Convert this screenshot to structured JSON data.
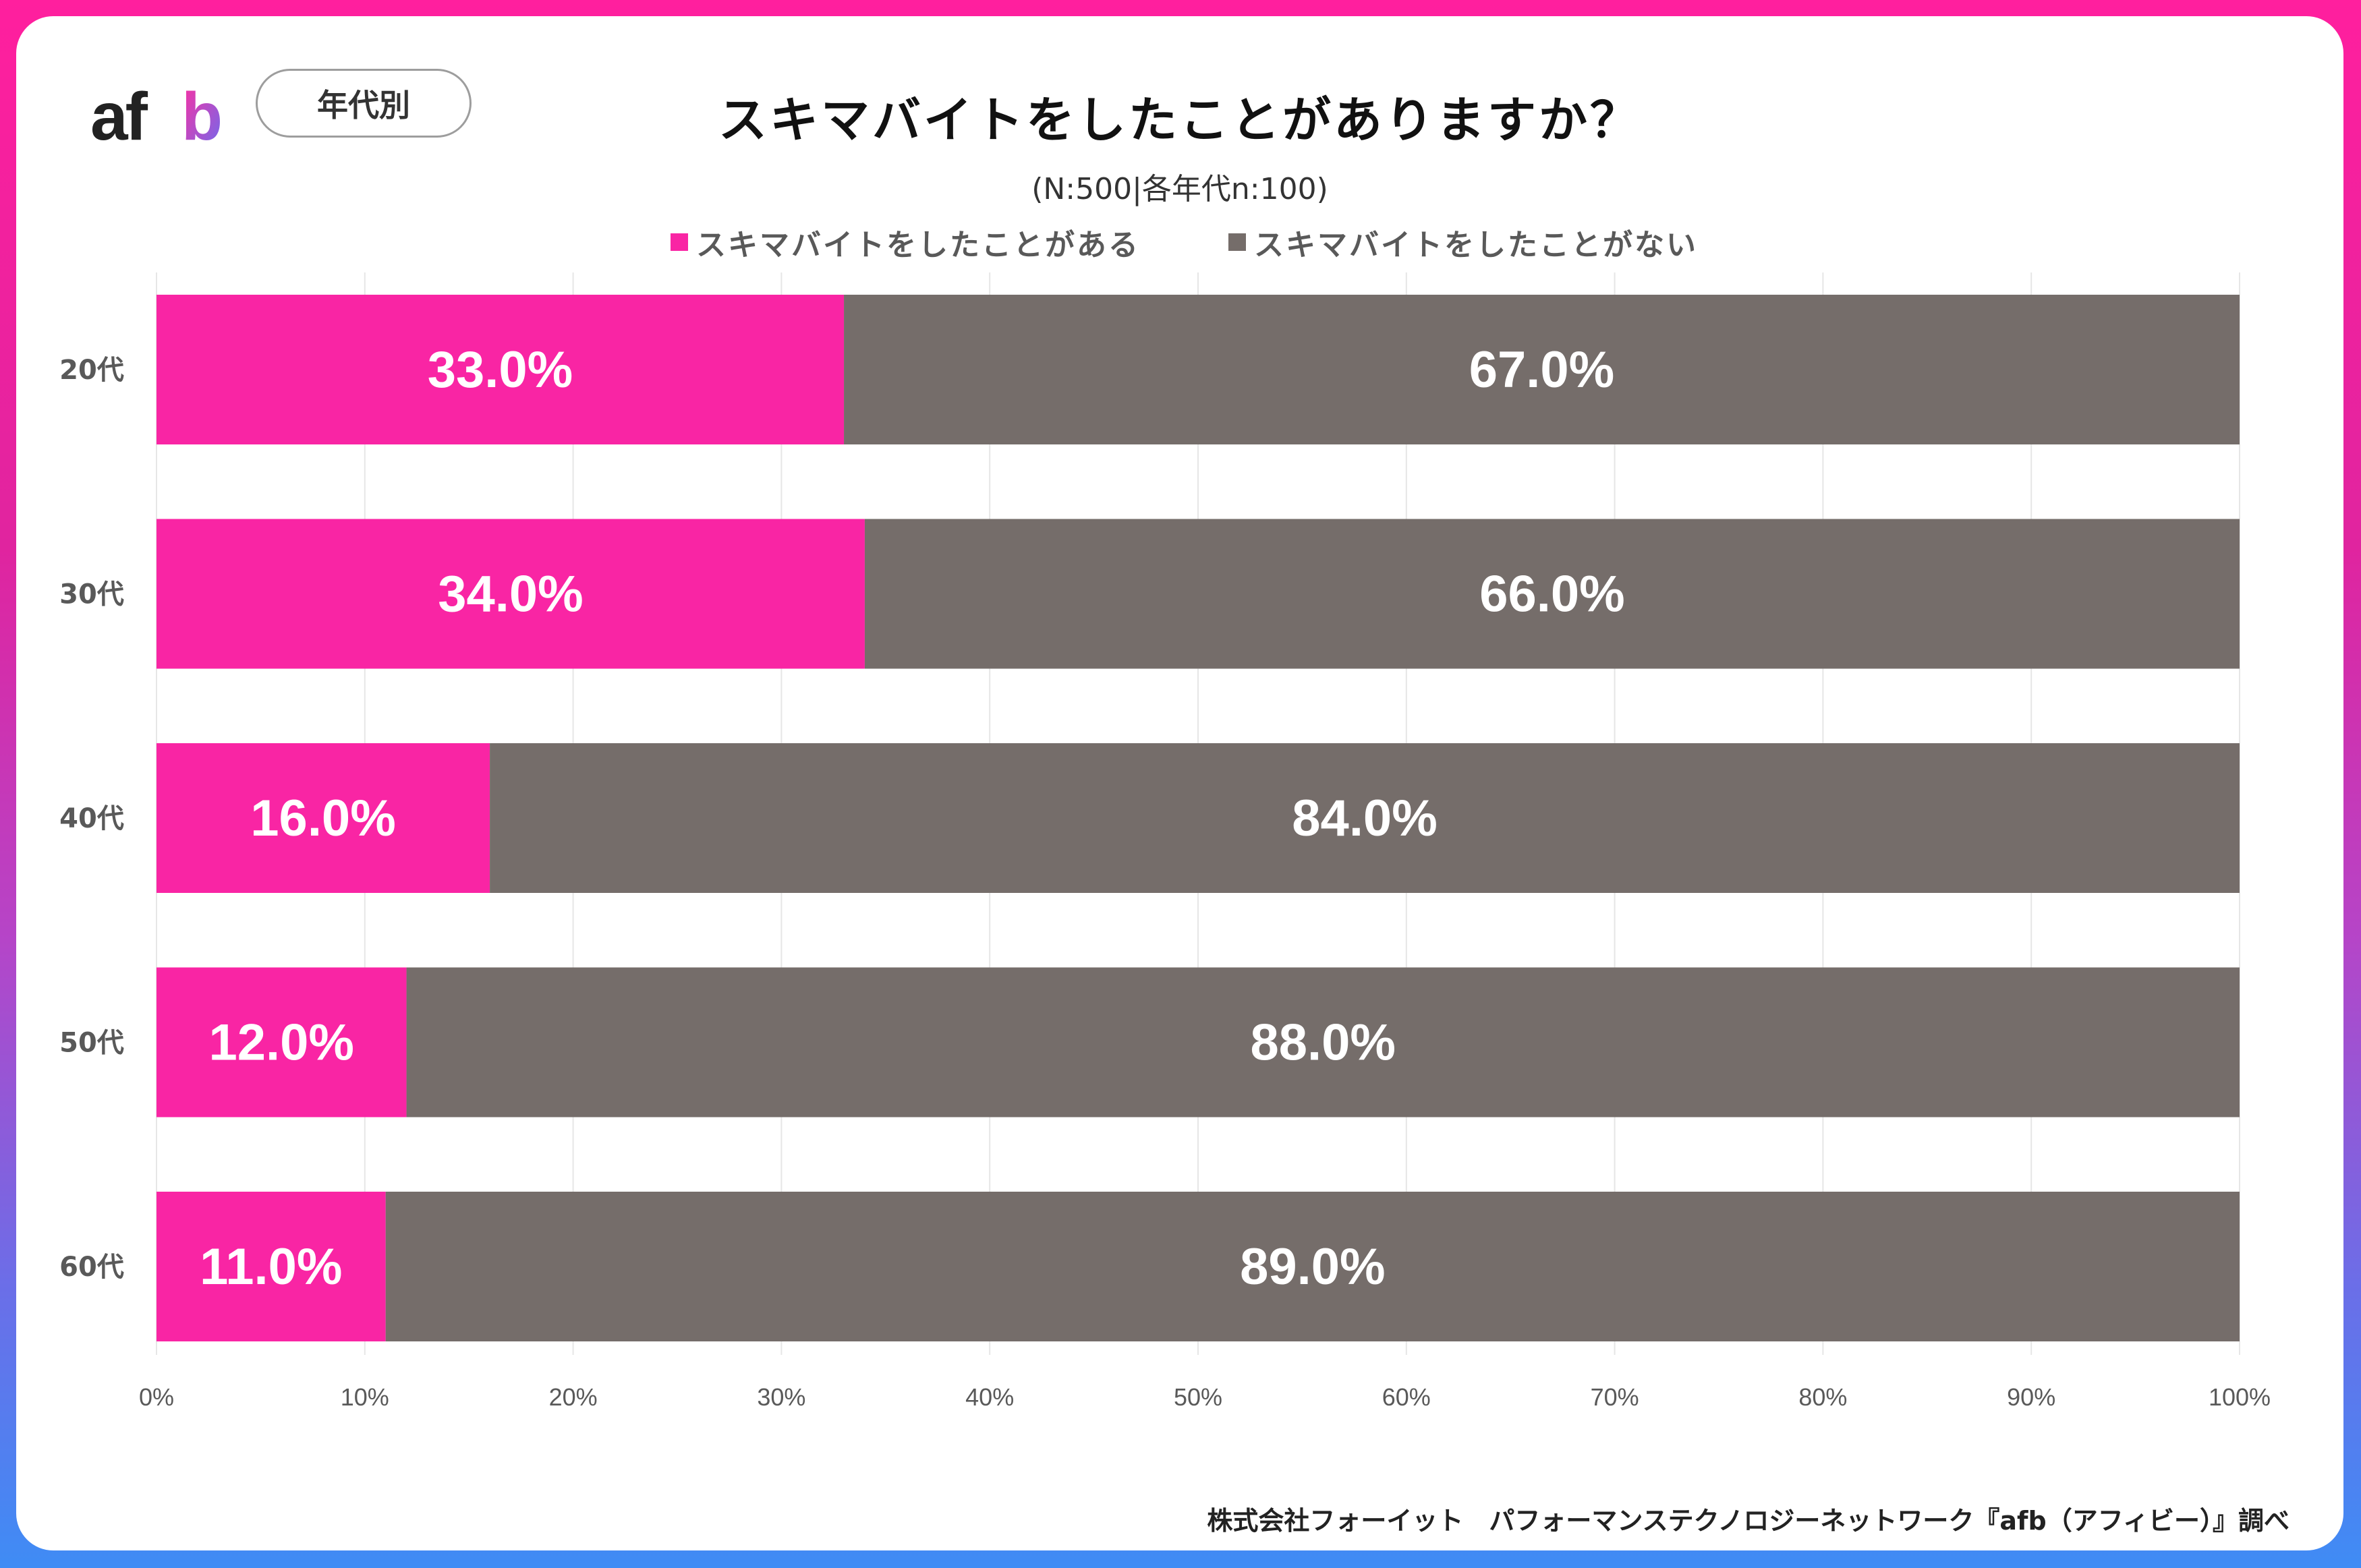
{
  "logo": {
    "text": "afb"
  },
  "badge": {
    "label": "年代別"
  },
  "header": {
    "title": "スキマバイトをしたことがありますか？",
    "subtitle": "(N:500|各年代n:100)"
  },
  "footer": {
    "credit": "株式会社フォーイット　パフォーマンステクノロジーネットワーク『afb（アフィビー）』調べ"
  },
  "colors": {
    "yes": "#f925a4",
    "no": "#756d6a",
    "grid": "#e6e6e6",
    "axis_text": "#595959"
  },
  "chart_data": {
    "type": "bar",
    "orientation": "horizontal",
    "stacked": true,
    "title": "スキマバイトをしたことがありますか？",
    "subtitle": "(N:500|各年代n:100)",
    "categories": [
      "20代",
      "30代",
      "40代",
      "50代",
      "60代"
    ],
    "series": [
      {
        "name": "スキマバイトをしたことがある",
        "values": [
          33.0,
          34.0,
          16.0,
          12.0,
          11.0
        ]
      },
      {
        "name": "スキマバイトをしたことがない",
        "values": [
          67.0,
          66.0,
          84.0,
          88.0,
          89.0
        ]
      }
    ],
    "xlim": [
      0,
      100
    ],
    "x_ticks": [
      "0%",
      "10%",
      "20%",
      "30%",
      "40%",
      "50%",
      "60%",
      "70%",
      "80%",
      "90%",
      "100%"
    ],
    "value_labels": [
      [
        "33.0%",
        "34.0%",
        "16.0%",
        "12.0%",
        "11.0%"
      ],
      [
        "67.0%",
        "66.0%",
        "84.0%",
        "88.0%",
        "89.0%"
      ]
    ],
    "grid": true,
    "legend_position": "top"
  }
}
